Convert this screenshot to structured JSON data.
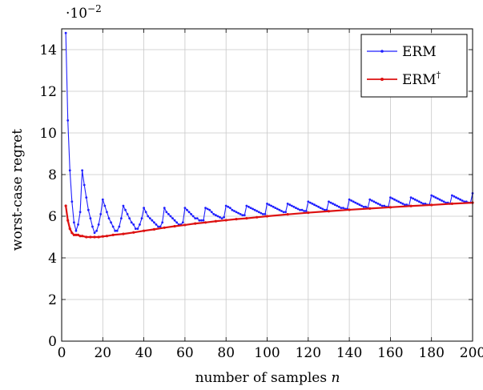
{
  "chart_data": {
    "type": "line",
    "title": "",
    "xlabel": "number of samples",
    "xlabel_var": "n",
    "ylabel": "worst-case regret",
    "y_scale_base": "·10",
    "y_scale_exp": "−2",
    "xlim": [
      0,
      200
    ],
    "ylim": [
      0,
      15
    ],
    "x_ticks": [
      0,
      20,
      40,
      60,
      80,
      100,
      120,
      140,
      160,
      180,
      200
    ],
    "y_ticks": [
      0,
      2,
      4,
      6,
      8,
      10,
      12,
      14
    ],
    "grid": true,
    "legend_position": "top-right",
    "series": [
      {
        "name": "ERM",
        "legend_sup": "",
        "color": "#1f1fff",
        "x": [
          2,
          3,
          4,
          5,
          6,
          7,
          8,
          9,
          10,
          11,
          12,
          13,
          14,
          15,
          16,
          17,
          18,
          19,
          20,
          21,
          22,
          23,
          24,
          25,
          26,
          27,
          28,
          29,
          30,
          31,
          32,
          33,
          34,
          35,
          36,
          37,
          38,
          39,
          40,
          41,
          42,
          43,
          44,
          45,
          46,
          47,
          48,
          49,
          50,
          51,
          52,
          53,
          54,
          55,
          56,
          57,
          58,
          59,
          60,
          61,
          62,
          63,
          64,
          65,
          66,
          67,
          68,
          69,
          70,
          71,
          72,
          73,
          74,
          75,
          76,
          77,
          78,
          79,
          80,
          81,
          82,
          83,
          84,
          85,
          86,
          87,
          88,
          89,
          90,
          91,
          92,
          93,
          94,
          95,
          96,
          97,
          98,
          99,
          100,
          101,
          102,
          103,
          104,
          105,
          106,
          107,
          108,
          109,
          110,
          111,
          112,
          113,
          114,
          115,
          116,
          117,
          118,
          119,
          120,
          121,
          122,
          123,
          124,
          125,
          126,
          127,
          128,
          129,
          130,
          131,
          132,
          133,
          134,
          135,
          136,
          137,
          138,
          139,
          140,
          141,
          142,
          143,
          144,
          145,
          146,
          147,
          148,
          149,
          150,
          151,
          152,
          153,
          154,
          155,
          156,
          157,
          158,
          159,
          160,
          161,
          162,
          163,
          164,
          165,
          166,
          167,
          168,
          169,
          170,
          171,
          172,
          173,
          174,
          175,
          176,
          177,
          178,
          179,
          180,
          181,
          182,
          183,
          184,
          185,
          186,
          187,
          188,
          189,
          190,
          191,
          192,
          193,
          194,
          195,
          196,
          197,
          198,
          199,
          200
        ],
        "values": [
          14.8,
          10.6,
          8.2,
          6.7,
          5.7,
          5.3,
          5.6,
          6.2,
          8.2,
          7.5,
          6.9,
          6.3,
          5.9,
          5.5,
          5.2,
          5.3,
          5.6,
          6.1,
          6.8,
          6.5,
          6.2,
          5.9,
          5.7,
          5.5,
          5.3,
          5.3,
          5.5,
          5.9,
          6.5,
          6.3,
          6.1,
          5.9,
          5.7,
          5.6,
          5.4,
          5.4,
          5.6,
          5.9,
          6.4,
          6.2,
          6.0,
          5.9,
          5.8,
          5.7,
          5.6,
          5.5,
          5.5,
          5.7,
          6.4,
          6.2,
          6.1,
          6.0,
          5.9,
          5.8,
          5.7,
          5.6,
          5.6,
          5.7,
          6.4,
          6.3,
          6.2,
          6.1,
          6.0,
          5.9,
          5.9,
          5.8,
          5.8,
          5.8,
          6.4,
          6.35,
          6.3,
          6.2,
          6.1,
          6.05,
          6.0,
          5.95,
          5.9,
          5.95,
          6.5,
          6.45,
          6.4,
          6.3,
          6.25,
          6.2,
          6.15,
          6.1,
          6.05,
          6.05,
          6.5,
          6.45,
          6.4,
          6.35,
          6.3,
          6.25,
          6.2,
          6.15,
          6.1,
          6.1,
          6.6,
          6.55,
          6.5,
          6.45,
          6.4,
          6.35,
          6.3,
          6.25,
          6.2,
          6.2,
          6.6,
          6.55,
          6.5,
          6.45,
          6.4,
          6.35,
          6.3,
          6.3,
          6.25,
          6.25,
          6.7,
          6.65,
          6.6,
          6.55,
          6.5,
          6.45,
          6.4,
          6.35,
          6.3,
          6.3,
          6.7,
          6.65,
          6.6,
          6.55,
          6.5,
          6.45,
          6.4,
          6.4,
          6.35,
          6.35,
          6.8,
          6.75,
          6.7,
          6.65,
          6.6,
          6.55,
          6.5,
          6.45,
          6.45,
          6.4,
          6.8,
          6.75,
          6.7,
          6.65,
          6.6,
          6.55,
          6.5,
          6.5,
          6.45,
          6.45,
          6.9,
          6.85,
          6.8,
          6.75,
          6.7,
          6.65,
          6.6,
          6.55,
          6.55,
          6.5,
          6.9,
          6.85,
          6.8,
          6.75,
          6.7,
          6.65,
          6.6,
          6.6,
          6.55,
          6.55,
          7.0,
          6.95,
          6.9,
          6.85,
          6.8,
          6.75,
          6.7,
          6.65,
          6.65,
          6.6,
          7.0,
          6.95,
          6.9,
          6.85,
          6.8,
          6.75,
          6.7,
          6.7,
          6.65,
          6.65,
          7.1
        ]
      },
      {
        "name": "ERM",
        "legend_sup": "†",
        "color": "#dd1111",
        "x": [
          2,
          3,
          4,
          5,
          6,
          7,
          8,
          9,
          10,
          12,
          14,
          16,
          18,
          20,
          22,
          25,
          30,
          35,
          40,
          45,
          50,
          55,
          60,
          65,
          70,
          75,
          80,
          85,
          90,
          95,
          100,
          110,
          120,
          130,
          140,
          150,
          160,
          170,
          180,
          190,
          200
        ],
        "values": [
          6.5,
          5.8,
          5.4,
          5.2,
          5.1,
          5.1,
          5.1,
          5.05,
          5.05,
          5.0,
          5.0,
          5.0,
          5.0,
          5.03,
          5.05,
          5.1,
          5.15,
          5.22,
          5.3,
          5.37,
          5.45,
          5.52,
          5.58,
          5.65,
          5.7,
          5.76,
          5.81,
          5.86,
          5.9,
          5.95,
          6.0,
          6.09,
          6.17,
          6.24,
          6.31,
          6.37,
          6.43,
          6.49,
          6.54,
          6.6,
          6.65
        ]
      }
    ]
  }
}
